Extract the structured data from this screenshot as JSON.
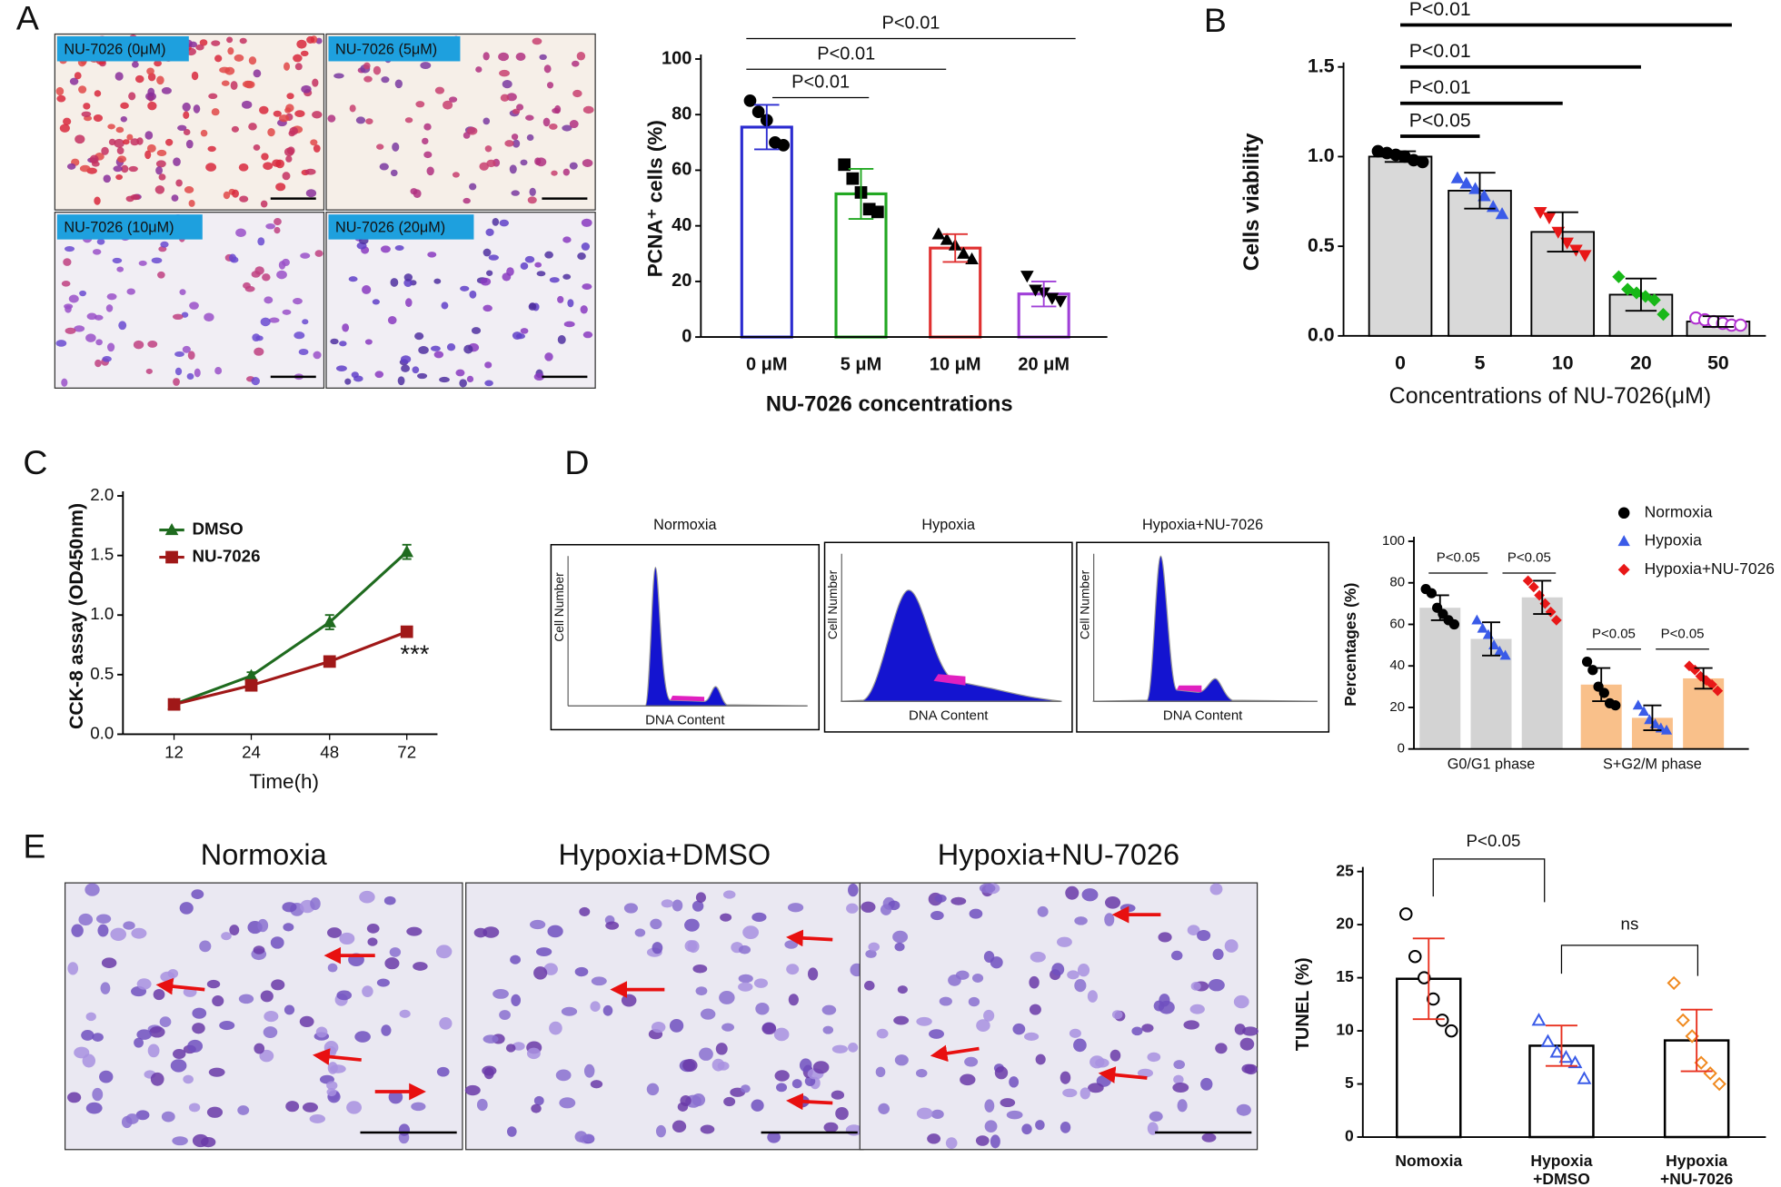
{
  "panels": {
    "labels": [
      "A",
      "B",
      "C",
      "D",
      "E"
    ]
  },
  "micrographs_a": {
    "labels": [
      "NU-7026 (0μM)",
      "NU-7026 (5μM)",
      "NU-7026 (10μM)",
      "NU-7026 (20μM)"
    ]
  },
  "flow": {
    "titles": [
      "Normoxia",
      "Hypoxia",
      "Hypoxia+NU-7026"
    ],
    "x_label": "DNA Content",
    "y_label": "Cell Number"
  },
  "micrographs_e": {
    "titles": [
      "Normoxia",
      "Hypoxia+DMSO",
      "Hypoxia+NU-7026"
    ]
  },
  "chart_data": [
    {
      "type": "bar",
      "y_label": "PCNA⁺ cells (%)",
      "x_label": "NU-7026 concentrations",
      "categories": [
        "0 μM",
        "5 μM",
        "10 μM",
        "20 μM"
      ],
      "values": [
        75.5,
        51.5,
        32,
        15.5
      ],
      "errors": [
        8,
        9,
        5,
        4.5
      ],
      "colors": [
        "#2b2bd0",
        "#22a822",
        "#e03030",
        "#a040d8"
      ],
      "points": [
        [
          85,
          81,
          78,
          70,
          69
        ],
        [
          62,
          57,
          52,
          46,
          45
        ],
        [
          37,
          35,
          33,
          30,
          28
        ],
        [
          22,
          17,
          16,
          14,
          13
        ]
      ],
      "point_colors": [
        "#000",
        "#000",
        "#000",
        "#000"
      ],
      "markers": [
        "circle",
        "square",
        "triangle",
        "triangle-down"
      ],
      "ylim": [
        0,
        100
      ],
      "yticks": [
        0,
        20,
        40,
        60,
        80,
        100
      ],
      "annotations": [
        "P<0.01",
        "P<0.01",
        "P<0.01"
      ]
    },
    {
      "type": "bar",
      "y_label": "Cells viability",
      "x_label": "Concentrations of NU-7026(μM)",
      "categories": [
        "0",
        "5",
        "10",
        "20",
        "50"
      ],
      "values": [
        1.0,
        0.81,
        0.58,
        0.23,
        0.08
      ],
      "errors": [
        0.03,
        0.1,
        0.11,
        0.09,
        0.03
      ],
      "bar_color": "#d9d9d9",
      "edge_color": "#000000",
      "points": [
        [
          1.03,
          1.02,
          1.01,
          1.0,
          0.98,
          0.97
        ],
        [
          0.88,
          0.85,
          0.82,
          0.78,
          0.72,
          0.68
        ],
        [
          0.69,
          0.66,
          0.58,
          0.52,
          0.48,
          0.45
        ],
        [
          0.33,
          0.26,
          0.24,
          0.22,
          0.2,
          0.12
        ],
        [
          0.1,
          0.09,
          0.08,
          0.07,
          0.06,
          0.06
        ]
      ],
      "point_colors": [
        "#000000",
        "#3a5be8",
        "#e81818",
        "#18b818",
        "#b030d0"
      ],
      "markers": [
        "circle",
        "triangle",
        "triangle-down",
        "diamond",
        "circle-open"
      ],
      "ylim": [
        0,
        1.5
      ],
      "yticks": [
        {
          "value": 0,
          "label": "0.0"
        },
        {
          "value": 0.5,
          "label": "0.5"
        },
        {
          "value": 1,
          "label": "1.0"
        },
        {
          "value": 1.5,
          "label": "1.5"
        }
      ],
      "annotations": [
        "P<0.05",
        "P<0.01",
        "P<0.01",
        "P<0.01"
      ]
    },
    {
      "type": "line",
      "y_label": "CCK-8 assay (OD450nm)",
      "x_label": "Time(h)",
      "categories": [
        "12",
        "24",
        "48",
        "72"
      ],
      "series": [
        {
          "name": "DMSO",
          "color": "#1f6b1f",
          "marker": "triangle",
          "values": [
            0.25,
            0.49,
            0.94,
            1.53
          ],
          "errors": [
            0.02,
            0.03,
            0.06,
            0.06
          ]
        },
        {
          "name": "NU-7026",
          "color": "#a01818",
          "marker": "square",
          "values": [
            0.25,
            0.41,
            0.61,
            0.86
          ],
          "errors": [
            0.02,
            0.02,
            0.02,
            0.03
          ]
        }
      ],
      "ylim": [
        0,
        2
      ],
      "yticks": [
        {
          "value": 0,
          "label": "0.0"
        },
        {
          "value": 0.5,
          "label": "0.5"
        },
        {
          "value": 1,
          "label": "1.0"
        },
        {
          "value": 1.5,
          "label": "1.5"
        },
        {
          "value": 2,
          "label": "2.0"
        }
      ],
      "annotations": [
        "***"
      ]
    },
    {
      "type": "grouped_bar",
      "y_label": "Percentages (%)",
      "categories": [
        "G0/G1 phase",
        "S+G2/M phase"
      ],
      "bar_colors": [
        "#d3d3d3",
        "#f9c08a"
      ],
      "series": [
        {
          "name": "Normoxia",
          "color": "#000000",
          "marker": "circle",
          "values": [
            68,
            31
          ],
          "errors": [
            6,
            8
          ],
          "points": [
            [
              77,
              75,
              68,
              65,
              62,
              60
            ],
            [
              42,
              38,
              30,
              27,
              22,
              21
            ]
          ]
        },
        {
          "name": "Hypoxia",
          "color": "#3a5be8",
          "marker": "triangle",
          "values": [
            53,
            15
          ],
          "errors": [
            8,
            6
          ],
          "points": [
            [
              62,
              58,
              55,
              50,
              47,
              45
            ],
            [
              21,
              18,
              14,
              12,
              10,
              9
            ]
          ]
        },
        {
          "name": "Hypoxia+NU-7026",
          "color": "#e81818",
          "marker": "diamond",
          "values": [
            73,
            34
          ],
          "errors": [
            8,
            5
          ],
          "points": [
            [
              81,
              78,
              74,
              70,
              66,
              62
            ],
            [
              40,
              38,
              35,
              33,
              31,
              28
            ]
          ]
        }
      ],
      "ylim": [
        0,
        100
      ],
      "yticks": [
        0,
        20,
        40,
        60,
        80,
        100
      ],
      "annotations": [
        "P<0.05",
        "P<0.05",
        "P<0.05",
        "P<0.05"
      ]
    },
    {
      "type": "bar",
      "y_label": "TUNEL (%)",
      "categories": [
        [
          "Nomoxia"
        ],
        [
          "Hypoxia",
          "+DMSO"
        ],
        [
          "Hypoxia",
          "+NU-7026"
        ]
      ],
      "values": [
        14.9,
        8.6,
        9.1
      ],
      "errors": [
        3.8,
        1.9,
        2.9
      ],
      "bar_color": "#ffffff",
      "edge_color": "#000000",
      "error_color": "#e8301e",
      "points": [
        [
          21,
          17,
          15,
          13,
          11,
          10
        ],
        [
          11,
          9,
          8,
          7.5,
          7,
          5.5
        ],
        [
          14.5,
          11,
          9.5,
          7,
          6,
          5
        ]
      ],
      "point_colors": [
        "#000000",
        "#3a5be8",
        "#f08a20"
      ],
      "markers": [
        "circle-open",
        "triangle-open",
        "diamond-open"
      ],
      "ylim": [
        0,
        25
      ],
      "yticks": [
        0,
        5,
        10,
        15,
        20,
        25
      ],
      "annotations": [
        "P<0.05",
        "ns"
      ]
    }
  ]
}
